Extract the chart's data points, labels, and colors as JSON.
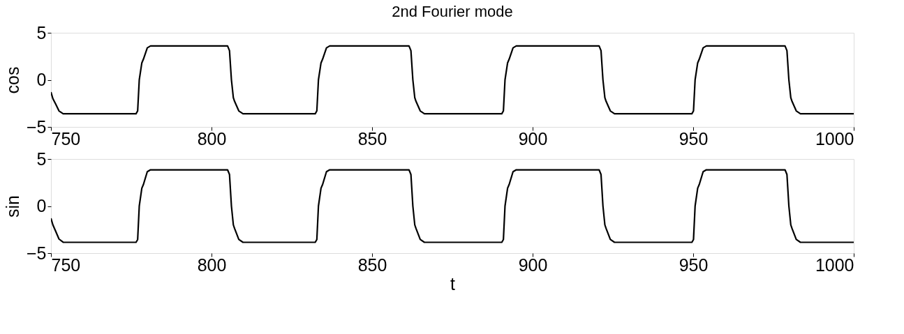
{
  "chart_data": [
    {
      "type": "line",
      "title": "2nd Fourier mode",
      "ylabel": "cos",
      "xlim": [
        750,
        1000
      ],
      "xticks": [
        750,
        800,
        850,
        900,
        950,
        1000
      ],
      "ylim": [
        -5,
        5
      ],
      "yticks": [
        -5,
        0,
        5
      ],
      "series": [
        {
          "color": "#000000",
          "x": [
            750,
            750.6,
            751.5,
            752.5,
            753.8,
            776.5,
            777,
            777.5,
            778.3,
            778.8,
            780,
            781,
            805,
            805.6,
            806.2,
            806.8,
            807.2,
            808.5,
            809.8,
            832.3,
            832.8,
            833.3,
            834.1,
            834.6,
            835.8,
            836.8,
            861.5,
            862.1,
            862.7,
            863.3,
            863.7,
            865,
            866.3,
            890.4,
            890.9,
            891.4,
            892.2,
            892.7,
            893.9,
            894.9,
            920.7,
            921.3,
            921.9,
            922.5,
            922.9,
            924.2,
            925.5,
            949.6,
            950.1,
            950.6,
            951.4,
            951.9,
            953.1,
            954.1,
            978.6,
            979.2,
            979.8,
            980.4,
            980.8,
            982.1,
            983.4,
            1000
          ],
          "values": [
            -1.3,
            -2.0,
            -2.6,
            -3.3,
            -3.6,
            -3.6,
            -3.3,
            0,
            1.8,
            2.2,
            3.4,
            3.6,
            3.6,
            3.1,
            0,
            -1.9,
            -2.3,
            -3.3,
            -3.6,
            -3.6,
            -3.3,
            0,
            1.8,
            2.2,
            3.4,
            3.6,
            3.6,
            3.1,
            0,
            -1.9,
            -2.3,
            -3.3,
            -3.6,
            -3.6,
            -3.3,
            0,
            1.8,
            2.2,
            3.4,
            3.6,
            3.6,
            3.1,
            0,
            -1.9,
            -2.3,
            -3.3,
            -3.6,
            -3.6,
            -3.3,
            0,
            1.8,
            2.2,
            3.4,
            3.6,
            3.6,
            3.1,
            0,
            -1.9,
            -2.3,
            -3.3,
            -3.6,
            -3.6
          ]
        }
      ]
    },
    {
      "type": "line",
      "xlabel": "t",
      "ylabel": "sin",
      "xlim": [
        750,
        1000
      ],
      "xticks": [
        750,
        800,
        850,
        900,
        950,
        1000
      ],
      "ylim": [
        -5,
        5
      ],
      "yticks": [
        -5,
        0,
        5
      ],
      "series": [
        {
          "color": "#000000",
          "x": [
            750,
            750.6,
            751.5,
            752.5,
            753.8,
            776.5,
            777,
            777.5,
            778.3,
            778.8,
            780,
            781,
            805,
            805.6,
            806.2,
            806.8,
            807.2,
            808.5,
            809.8,
            832.3,
            832.8,
            833.3,
            834.1,
            834.6,
            835.8,
            836.8,
            861.5,
            862.1,
            862.7,
            863.3,
            863.7,
            865,
            866.3,
            890.4,
            890.9,
            891.4,
            892.2,
            892.7,
            893.9,
            894.9,
            920.7,
            921.3,
            921.9,
            922.5,
            922.9,
            924.2,
            925.5,
            949.6,
            950.1,
            950.6,
            951.4,
            951.9,
            953.1,
            954.1,
            978.6,
            979.2,
            979.8,
            980.4,
            980.8,
            982.1,
            983.4,
            1000
          ],
          "values": [
            -1.3,
            -2.0,
            -2.7,
            -3.5,
            -3.85,
            -3.85,
            -3.55,
            0,
            1.9,
            2.3,
            3.65,
            3.85,
            3.85,
            3.35,
            0,
            -2.0,
            -2.4,
            -3.55,
            -3.85,
            -3.85,
            -3.55,
            0,
            1.9,
            2.3,
            3.65,
            3.85,
            3.85,
            3.35,
            0,
            -2.0,
            -2.4,
            -3.55,
            -3.85,
            -3.85,
            -3.55,
            0,
            1.9,
            2.3,
            3.65,
            3.85,
            3.85,
            3.35,
            0,
            -2.0,
            -2.4,
            -3.55,
            -3.85,
            -3.85,
            -3.55,
            0,
            1.9,
            2.3,
            3.65,
            3.85,
            3.85,
            3.35,
            0,
            -2.0,
            -2.4,
            -3.55,
            -3.85,
            -3.85
          ]
        }
      ]
    }
  ]
}
